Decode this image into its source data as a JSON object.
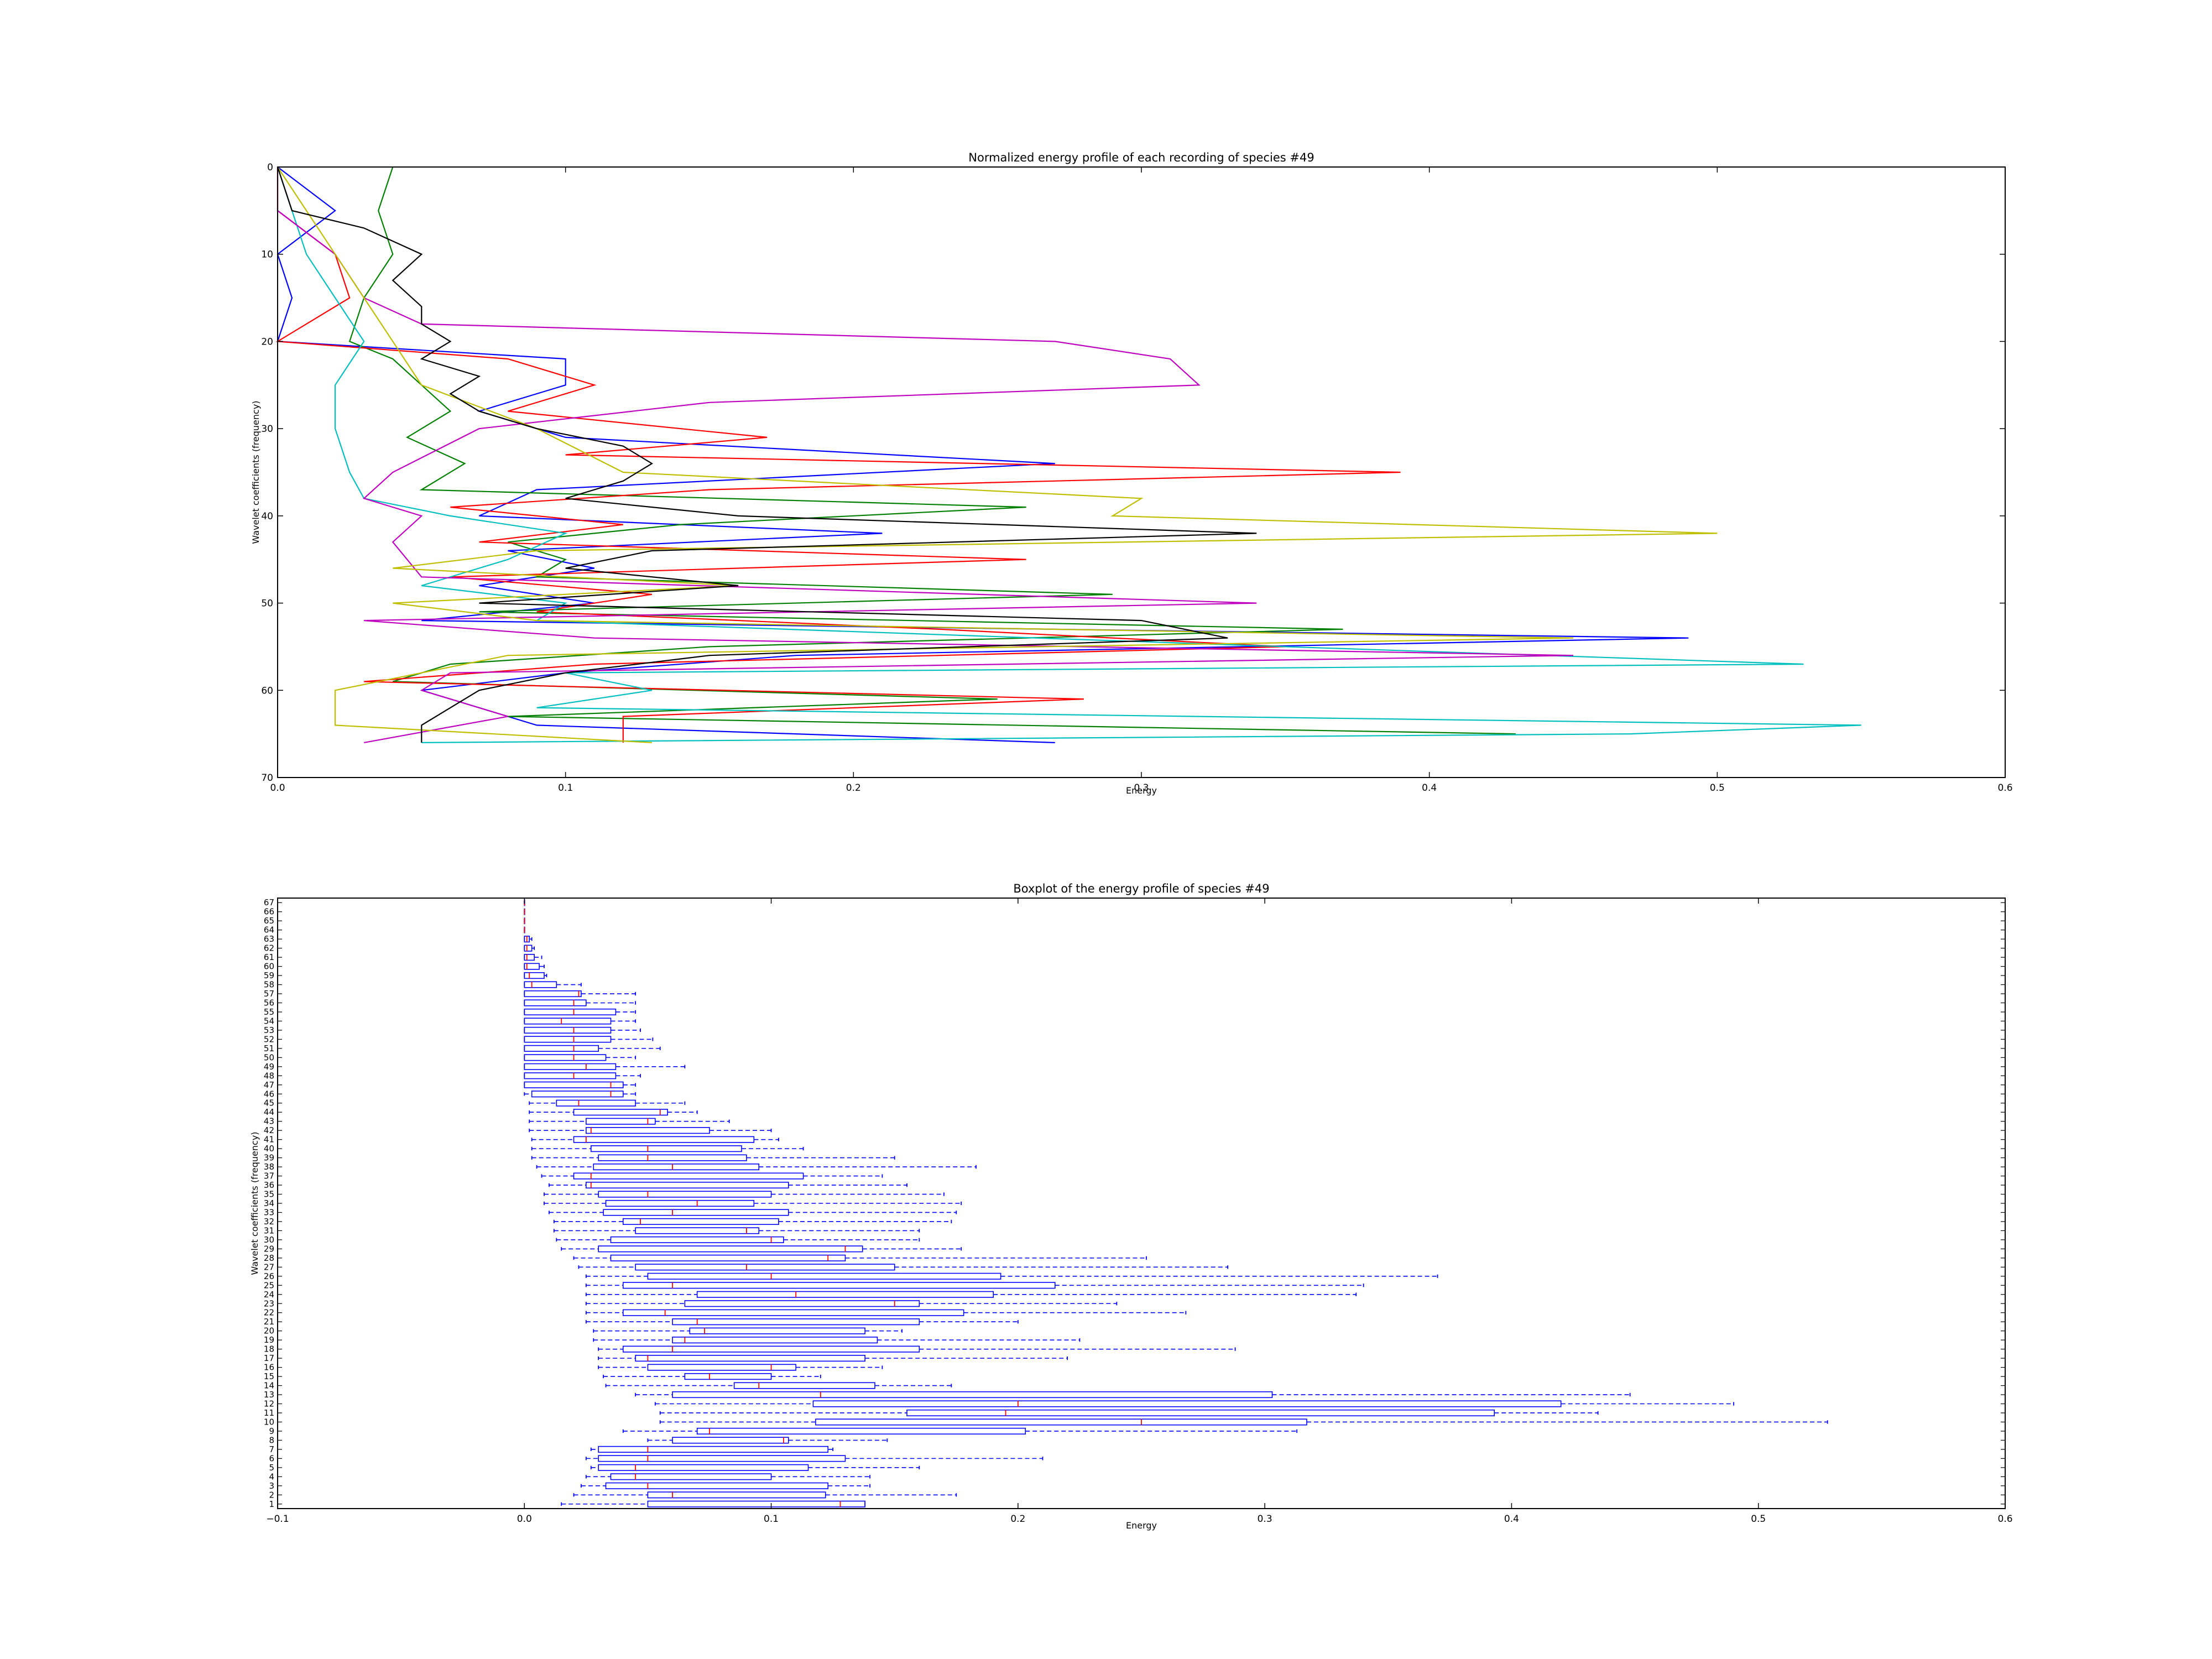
{
  "chart_data": [
    {
      "type": "line",
      "title": "Normalized energy profile of each recording of species #49",
      "xlabel": "Energy",
      "ylabel": "Wavelet coefficients (frequency)",
      "xlim": [
        0.0,
        0.6
      ],
      "ylim": [
        70,
        0
      ],
      "y_inverted": true,
      "xticks": [
        "0.0",
        "0.1",
        "0.2",
        "0.3",
        "0.4",
        "0.5",
        "0.6"
      ],
      "yticks": [
        "0",
        "10",
        "20",
        "30",
        "40",
        "50",
        "60",
        "70"
      ],
      "grid": false,
      "legend": "none",
      "series": [
        {
          "color": "#0000ff",
          "y": [
            0,
            5,
            10,
            15,
            20,
            22,
            25,
            28,
            31,
            34,
            37,
            40,
            42,
            44,
            46,
            48,
            50,
            52,
            54,
            56,
            58,
            60,
            62,
            64,
            66
          ],
          "x": [
            0.0,
            0.02,
            0.0,
            0.005,
            0.0,
            0.1,
            0.1,
            0.07,
            0.1,
            0.27,
            0.09,
            0.07,
            0.21,
            0.08,
            0.11,
            0.07,
            0.11,
            0.05,
            0.49,
            0.18,
            0.1,
            0.05,
            0.07,
            0.09,
            0.27
          ]
        },
        {
          "color": "#008000",
          "y": [
            0,
            5,
            10,
            15,
            20,
            22,
            25,
            28,
            31,
            34,
            37,
            39,
            41,
            43,
            45,
            47,
            49,
            51,
            53,
            55,
            57,
            59,
            61,
            63,
            65
          ],
          "x": [
            0.04,
            0.035,
            0.04,
            0.03,
            0.025,
            0.04,
            0.05,
            0.06,
            0.045,
            0.065,
            0.05,
            0.26,
            0.14,
            0.08,
            0.1,
            0.09,
            0.29,
            0.07,
            0.37,
            0.15,
            0.06,
            0.04,
            0.25,
            0.08,
            0.43
          ]
        },
        {
          "color": "#ff0000",
          "y": [
            0,
            5,
            10,
            15,
            20,
            22,
            25,
            28,
            31,
            33,
            35,
            37,
            39,
            41,
            43,
            45,
            47,
            49,
            51,
            53,
            55,
            57,
            59,
            61,
            63,
            66
          ],
          "x": [
            0.0,
            0.0,
            0.02,
            0.025,
            0.0,
            0.08,
            0.11,
            0.08,
            0.17,
            0.1,
            0.39,
            0.15,
            0.06,
            0.12,
            0.07,
            0.26,
            0.06,
            0.13,
            0.09,
            0.23,
            0.35,
            0.11,
            0.03,
            0.28,
            0.12,
            0.12
          ]
        },
        {
          "color": "#00bfbf",
          "y": [
            0,
            5,
            10,
            15,
            20,
            25,
            30,
            35,
            38,
            40,
            42,
            45,
            48,
            50,
            52,
            55,
            57,
            58,
            60,
            62,
            64,
            65,
            66
          ],
          "x": [
            0.0,
            0.005,
            0.01,
            0.02,
            0.03,
            0.02,
            0.02,
            0.025,
            0.03,
            0.06,
            0.1,
            0.08,
            0.05,
            0.1,
            0.09,
            0.35,
            0.53,
            0.1,
            0.13,
            0.09,
            0.55,
            0.47,
            0.05
          ]
        },
        {
          "color": "#bf00bf",
          "y": [
            0,
            5,
            10,
            15,
            18,
            20,
            22,
            25,
            27,
            30,
            35,
            38,
            40,
            43,
            47,
            50,
            52,
            54,
            56,
            58,
            60,
            63,
            66
          ],
          "x": [
            0.0,
            0.0,
            0.02,
            0.03,
            0.05,
            0.27,
            0.31,
            0.32,
            0.15,
            0.07,
            0.04,
            0.03,
            0.05,
            0.04,
            0.05,
            0.34,
            0.03,
            0.11,
            0.45,
            0.06,
            0.05,
            0.08,
            0.03
          ]
        },
        {
          "color": "#bfbf00",
          "y": [
            0,
            5,
            10,
            15,
            20,
            25,
            30,
            35,
            38,
            40,
            42,
            44,
            46,
            48,
            50,
            52,
            54,
            56,
            58,
            60,
            62,
            64,
            66
          ],
          "x": [
            0.0,
            0.01,
            0.02,
            0.03,
            0.04,
            0.05,
            0.09,
            0.12,
            0.3,
            0.29,
            0.5,
            0.09,
            0.04,
            0.16,
            0.04,
            0.09,
            0.45,
            0.08,
            0.05,
            0.02,
            0.02,
            0.02,
            0.13
          ]
        },
        {
          "color": "#000000",
          "y": [
            0,
            5,
            7,
            10,
            13,
            16,
            18,
            20,
            22,
            24,
            26,
            28,
            30,
            32,
            34,
            36,
            38,
            40,
            42,
            44,
            46,
            48,
            50,
            52,
            54,
            56,
            58,
            60,
            62,
            64,
            66
          ],
          "x": [
            0.0,
            0.005,
            0.03,
            0.05,
            0.04,
            0.05,
            0.05,
            0.06,
            0.05,
            0.07,
            0.06,
            0.07,
            0.09,
            0.12,
            0.13,
            0.12,
            0.1,
            0.16,
            0.34,
            0.13,
            0.1,
            0.16,
            0.07,
            0.3,
            0.33,
            0.15,
            0.1,
            0.07,
            0.06,
            0.05,
            0.05
          ]
        }
      ]
    },
    {
      "type": "boxplot",
      "title": "Boxplot of the energy profile of species #49",
      "xlabel": "Energy",
      "ylabel": "Wavelet coefficients (frequency)",
      "xlim": [
        -0.1,
        0.6
      ],
      "ylim": [
        0.5,
        67.5
      ],
      "xticks": [
        "−0.1",
        "0.0",
        "0.1",
        "0.2",
        "0.3",
        "0.4",
        "0.5",
        "0.6"
      ],
      "color": "#0000ff",
      "grid": false,
      "legend": "none",
      "categories": [
        "1",
        "2",
        "3",
        "4",
        "5",
        "6",
        "7",
        "8",
        "9",
        "10",
        "11",
        "12",
        "13",
        "14",
        "15",
        "16",
        "17",
        "18",
        "19",
        "20",
        "21",
        "22",
        "23",
        "24",
        "25",
        "26",
        "27",
        "28",
        "29",
        "30",
        "31",
        "32",
        "33",
        "34",
        "35",
        "36",
        "37",
        "38",
        "39",
        "40",
        "41",
        "42",
        "43",
        "44",
        "45",
        "46",
        "47",
        "48",
        "49",
        "50",
        "51",
        "52",
        "53",
        "54",
        "55",
        "56",
        "57",
        "58",
        "59",
        "60",
        "61",
        "62",
        "63",
        "64",
        "65",
        "66",
        "67"
      ],
      "boxes": [
        {
          "k": 1,
          "min": 0.015,
          "q1": 0.05,
          "med": 0.128,
          "q3": 0.138,
          "max": 0.138
        },
        {
          "k": 2,
          "min": 0.02,
          "q1": 0.05,
          "med": 0.06,
          "q3": 0.122,
          "max": 0.175
        },
        {
          "k": 3,
          "min": 0.023,
          "q1": 0.033,
          "med": 0.05,
          "q3": 0.123,
          "max": 0.14
        },
        {
          "k": 4,
          "min": 0.025,
          "q1": 0.035,
          "med": 0.045,
          "q3": 0.1,
          "max": 0.14
        },
        {
          "k": 5,
          "min": 0.027,
          "q1": 0.03,
          "med": 0.045,
          "q3": 0.115,
          "max": 0.16
        },
        {
          "k": 6,
          "min": 0.025,
          "q1": 0.03,
          "med": 0.05,
          "q3": 0.13,
          "max": 0.21
        },
        {
          "k": 7,
          "min": 0.027,
          "q1": 0.03,
          "med": 0.05,
          "q3": 0.123,
          "max": 0.125
        },
        {
          "k": 8,
          "min": 0.05,
          "q1": 0.06,
          "med": 0.105,
          "q3": 0.107,
          "max": 0.147
        },
        {
          "k": 9,
          "min": 0.04,
          "q1": 0.07,
          "med": 0.075,
          "q3": 0.203,
          "max": 0.313
        },
        {
          "k": 10,
          "min": 0.055,
          "q1": 0.118,
          "med": 0.25,
          "q3": 0.317,
          "max": 0.528
        },
        {
          "k": 11,
          "min": 0.055,
          "q1": 0.155,
          "med": 0.195,
          "q3": 0.393,
          "max": 0.435
        },
        {
          "k": 12,
          "min": 0.053,
          "q1": 0.117,
          "med": 0.2,
          "q3": 0.42,
          "max": 0.49
        },
        {
          "k": 13,
          "min": 0.045,
          "q1": 0.06,
          "med": 0.12,
          "q3": 0.303,
          "max": 0.448
        },
        {
          "k": 14,
          "min": 0.033,
          "q1": 0.085,
          "med": 0.095,
          "q3": 0.142,
          "max": 0.173
        },
        {
          "k": 15,
          "min": 0.032,
          "q1": 0.065,
          "med": 0.075,
          "q3": 0.1,
          "max": 0.12
        },
        {
          "k": 16,
          "min": 0.03,
          "q1": 0.05,
          "med": 0.1,
          "q3": 0.11,
          "max": 0.145
        },
        {
          "k": 17,
          "min": 0.03,
          "q1": 0.045,
          "med": 0.05,
          "q3": 0.138,
          "max": 0.22
        },
        {
          "k": 18,
          "min": 0.03,
          "q1": 0.04,
          "med": 0.06,
          "q3": 0.16,
          "max": 0.288
        },
        {
          "k": 19,
          "min": 0.028,
          "q1": 0.06,
          "med": 0.065,
          "q3": 0.143,
          "max": 0.225
        },
        {
          "k": 20,
          "min": 0.028,
          "q1": 0.067,
          "med": 0.073,
          "q3": 0.138,
          "max": 0.153
        },
        {
          "k": 21,
          "min": 0.025,
          "q1": 0.06,
          "med": 0.07,
          "q3": 0.16,
          "max": 0.2
        },
        {
          "k": 22,
          "min": 0.025,
          "q1": 0.04,
          "med": 0.057,
          "q3": 0.178,
          "max": 0.268
        },
        {
          "k": 23,
          "min": 0.025,
          "q1": 0.065,
          "med": 0.15,
          "q3": 0.16,
          "max": 0.24
        },
        {
          "k": 24,
          "min": 0.025,
          "q1": 0.07,
          "med": 0.11,
          "q3": 0.19,
          "max": 0.337
        },
        {
          "k": 25,
          "min": 0.025,
          "q1": 0.04,
          "med": 0.06,
          "q3": 0.215,
          "max": 0.34
        },
        {
          "k": 26,
          "min": 0.025,
          "q1": 0.05,
          "med": 0.1,
          "q3": 0.193,
          "max": 0.37
        },
        {
          "k": 27,
          "min": 0.022,
          "q1": 0.045,
          "med": 0.09,
          "q3": 0.15,
          "max": 0.285
        },
        {
          "k": 28,
          "min": 0.02,
          "q1": 0.035,
          "med": 0.123,
          "q3": 0.13,
          "max": 0.252
        },
        {
          "k": 29,
          "min": 0.015,
          "q1": 0.03,
          "med": 0.13,
          "q3": 0.137,
          "max": 0.177
        },
        {
          "k": 30,
          "min": 0.013,
          "q1": 0.035,
          "med": 0.1,
          "q3": 0.105,
          "max": 0.16
        },
        {
          "k": 31,
          "min": 0.012,
          "q1": 0.045,
          "med": 0.09,
          "q3": 0.095,
          "max": 0.16
        },
        {
          "k": 32,
          "min": 0.012,
          "q1": 0.04,
          "med": 0.047,
          "q3": 0.103,
          "max": 0.173
        },
        {
          "k": 33,
          "min": 0.01,
          "q1": 0.032,
          "med": 0.06,
          "q3": 0.107,
          "max": 0.175
        },
        {
          "k": 34,
          "min": 0.008,
          "q1": 0.033,
          "med": 0.07,
          "q3": 0.093,
          "max": 0.177
        },
        {
          "k": 35,
          "min": 0.008,
          "q1": 0.03,
          "med": 0.05,
          "q3": 0.1,
          "max": 0.17
        },
        {
          "k": 36,
          "min": 0.01,
          "q1": 0.025,
          "med": 0.027,
          "q3": 0.107,
          "max": 0.155
        },
        {
          "k": 37,
          "min": 0.007,
          "q1": 0.02,
          "med": 0.027,
          "q3": 0.113,
          "max": 0.145
        },
        {
          "k": 38,
          "min": 0.005,
          "q1": 0.028,
          "med": 0.06,
          "q3": 0.095,
          "max": 0.183
        },
        {
          "k": 39,
          "min": 0.003,
          "q1": 0.03,
          "med": 0.05,
          "q3": 0.09,
          "max": 0.15
        },
        {
          "k": 40,
          "min": 0.003,
          "q1": 0.027,
          "med": 0.05,
          "q3": 0.088,
          "max": 0.113
        },
        {
          "k": 41,
          "min": 0.003,
          "q1": 0.02,
          "med": 0.025,
          "q3": 0.093,
          "max": 0.103
        },
        {
          "k": 42,
          "min": 0.002,
          "q1": 0.025,
          "med": 0.027,
          "q3": 0.075,
          "max": 0.1
        },
        {
          "k": 43,
          "min": 0.002,
          "q1": 0.025,
          "med": 0.05,
          "q3": 0.053,
          "max": 0.083
        },
        {
          "k": 44,
          "min": 0.002,
          "q1": 0.02,
          "med": 0.055,
          "q3": 0.058,
          "max": 0.07
        },
        {
          "k": 45,
          "min": 0.002,
          "q1": 0.013,
          "med": 0.022,
          "q3": 0.045,
          "max": 0.065
        },
        {
          "k": 46,
          "min": 0.0,
          "q1": 0.003,
          "med": 0.035,
          "q3": 0.04,
          "max": 0.045
        },
        {
          "k": 47,
          "min": 0.0,
          "q1": 0.0,
          "med": 0.035,
          "q3": 0.04,
          "max": 0.045
        },
        {
          "k": 48,
          "min": 0.0,
          "q1": 0.0,
          "med": 0.02,
          "q3": 0.037,
          "max": 0.047
        },
        {
          "k": 49,
          "min": 0.0,
          "q1": 0.0,
          "med": 0.025,
          "q3": 0.037,
          "max": 0.065
        },
        {
          "k": 50,
          "min": 0.0,
          "q1": 0.0,
          "med": 0.02,
          "q3": 0.033,
          "max": 0.045
        },
        {
          "k": 51,
          "min": 0.0,
          "q1": 0.0,
          "med": 0.02,
          "q3": 0.03,
          "max": 0.055
        },
        {
          "k": 52,
          "min": 0.0,
          "q1": 0.0,
          "med": 0.02,
          "q3": 0.035,
          "max": 0.052
        },
        {
          "k": 53,
          "min": 0.0,
          "q1": 0.0,
          "med": 0.02,
          "q3": 0.035,
          "max": 0.047
        },
        {
          "k": 54,
          "min": 0.0,
          "q1": 0.0,
          "med": 0.015,
          "q3": 0.035,
          "max": 0.045
        },
        {
          "k": 55,
          "min": 0.0,
          "q1": 0.0,
          "med": 0.02,
          "q3": 0.037,
          "max": 0.045
        },
        {
          "k": 56,
          "min": 0.0,
          "q1": 0.0,
          "med": 0.02,
          "q3": 0.025,
          "max": 0.045
        },
        {
          "k": 57,
          "min": 0.0,
          "q1": 0.0,
          "med": 0.022,
          "q3": 0.023,
          "max": 0.045
        },
        {
          "k": 58,
          "min": 0.0,
          "q1": 0.0,
          "med": 0.003,
          "q3": 0.013,
          "max": 0.023
        },
        {
          "k": 59,
          "min": 0.0,
          "q1": 0.0,
          "med": 0.002,
          "q3": 0.008,
          "max": 0.009
        },
        {
          "k": 60,
          "min": 0.0,
          "q1": 0.0,
          "med": 0.001,
          "q3": 0.006,
          "max": 0.008
        },
        {
          "k": 61,
          "min": 0.0,
          "q1": 0.0,
          "med": 0.001,
          "q3": 0.004,
          "max": 0.007
        },
        {
          "k": 62,
          "min": 0.0,
          "q1": 0.0,
          "med": 0.001,
          "q3": 0.003,
          "max": 0.004
        },
        {
          "k": 63,
          "min": 0.0,
          "q1": 0.0,
          "med": 0.001,
          "q3": 0.002,
          "max": 0.003
        },
        {
          "k": 64,
          "min": 0.0,
          "q1": 0.0,
          "med": 0.0,
          "q3": 0.0,
          "max": 0.0
        },
        {
          "k": 65,
          "min": 0.0,
          "q1": 0.0,
          "med": 0.0,
          "q3": 0.0,
          "max": 0.0
        },
        {
          "k": 66,
          "min": 0.0,
          "q1": 0.0,
          "med": 0.0,
          "q3": 0.0,
          "max": 0.0
        },
        {
          "k": 67,
          "min": 0.0,
          "q1": 0.0,
          "med": 0.0,
          "q3": 0.0,
          "max": 0.0
        }
      ]
    }
  ]
}
